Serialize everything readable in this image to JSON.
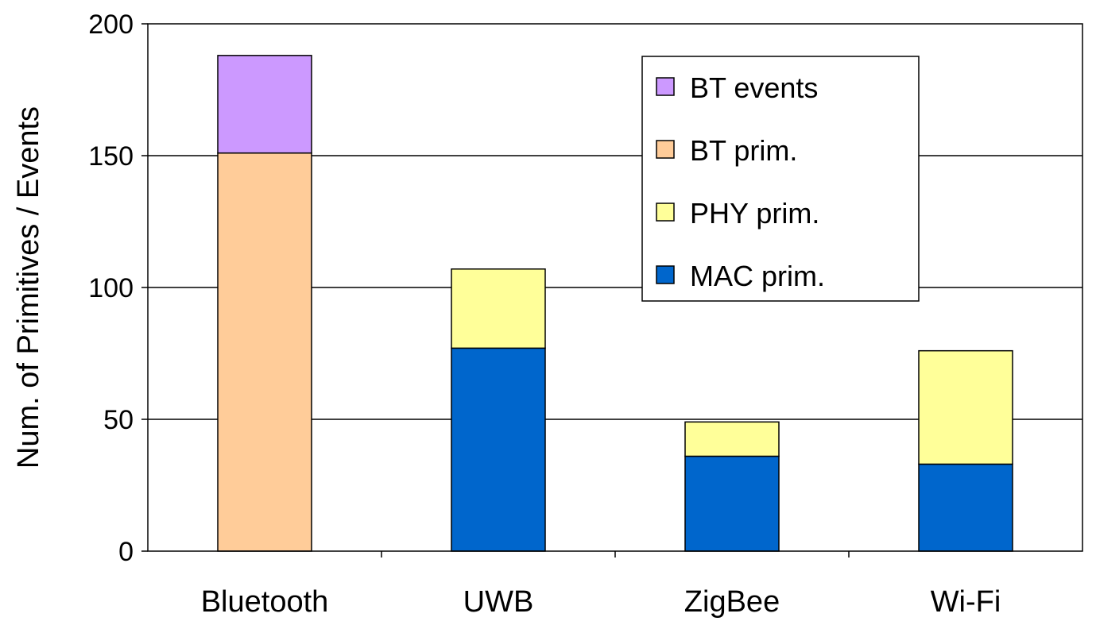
{
  "chart_data": {
    "type": "bar",
    "stacked": true,
    "title": "",
    "xlabel": "",
    "ylabel": "Num. of Primitives / Events",
    "ylim": [
      0,
      200
    ],
    "yticks": [
      "0",
      "50",
      "100",
      "150",
      "200"
    ],
    "grid": true,
    "legend_position": "top-right",
    "categories": [
      "Bluetooth",
      "UWB",
      "ZigBee",
      "Wi-Fi"
    ],
    "series": [
      {
        "name": "MAC prim.",
        "color": "#0066CC",
        "values": [
          0,
          77,
          36,
          33
        ]
      },
      {
        "name": "PHY prim.",
        "color": "#FFFF99",
        "values": [
          0,
          30,
          13,
          43
        ]
      },
      {
        "name": "BT prim.",
        "color": "#FFCC99",
        "values": [
          151,
          0,
          0,
          0
        ]
      },
      {
        "name": "BT events",
        "color": "#CC99FF",
        "values": [
          37,
          0,
          0,
          0
        ]
      }
    ],
    "legend_order": [
      "BT events",
      "BT prim.",
      "PHY prim.",
      "MAC prim."
    ]
  }
}
